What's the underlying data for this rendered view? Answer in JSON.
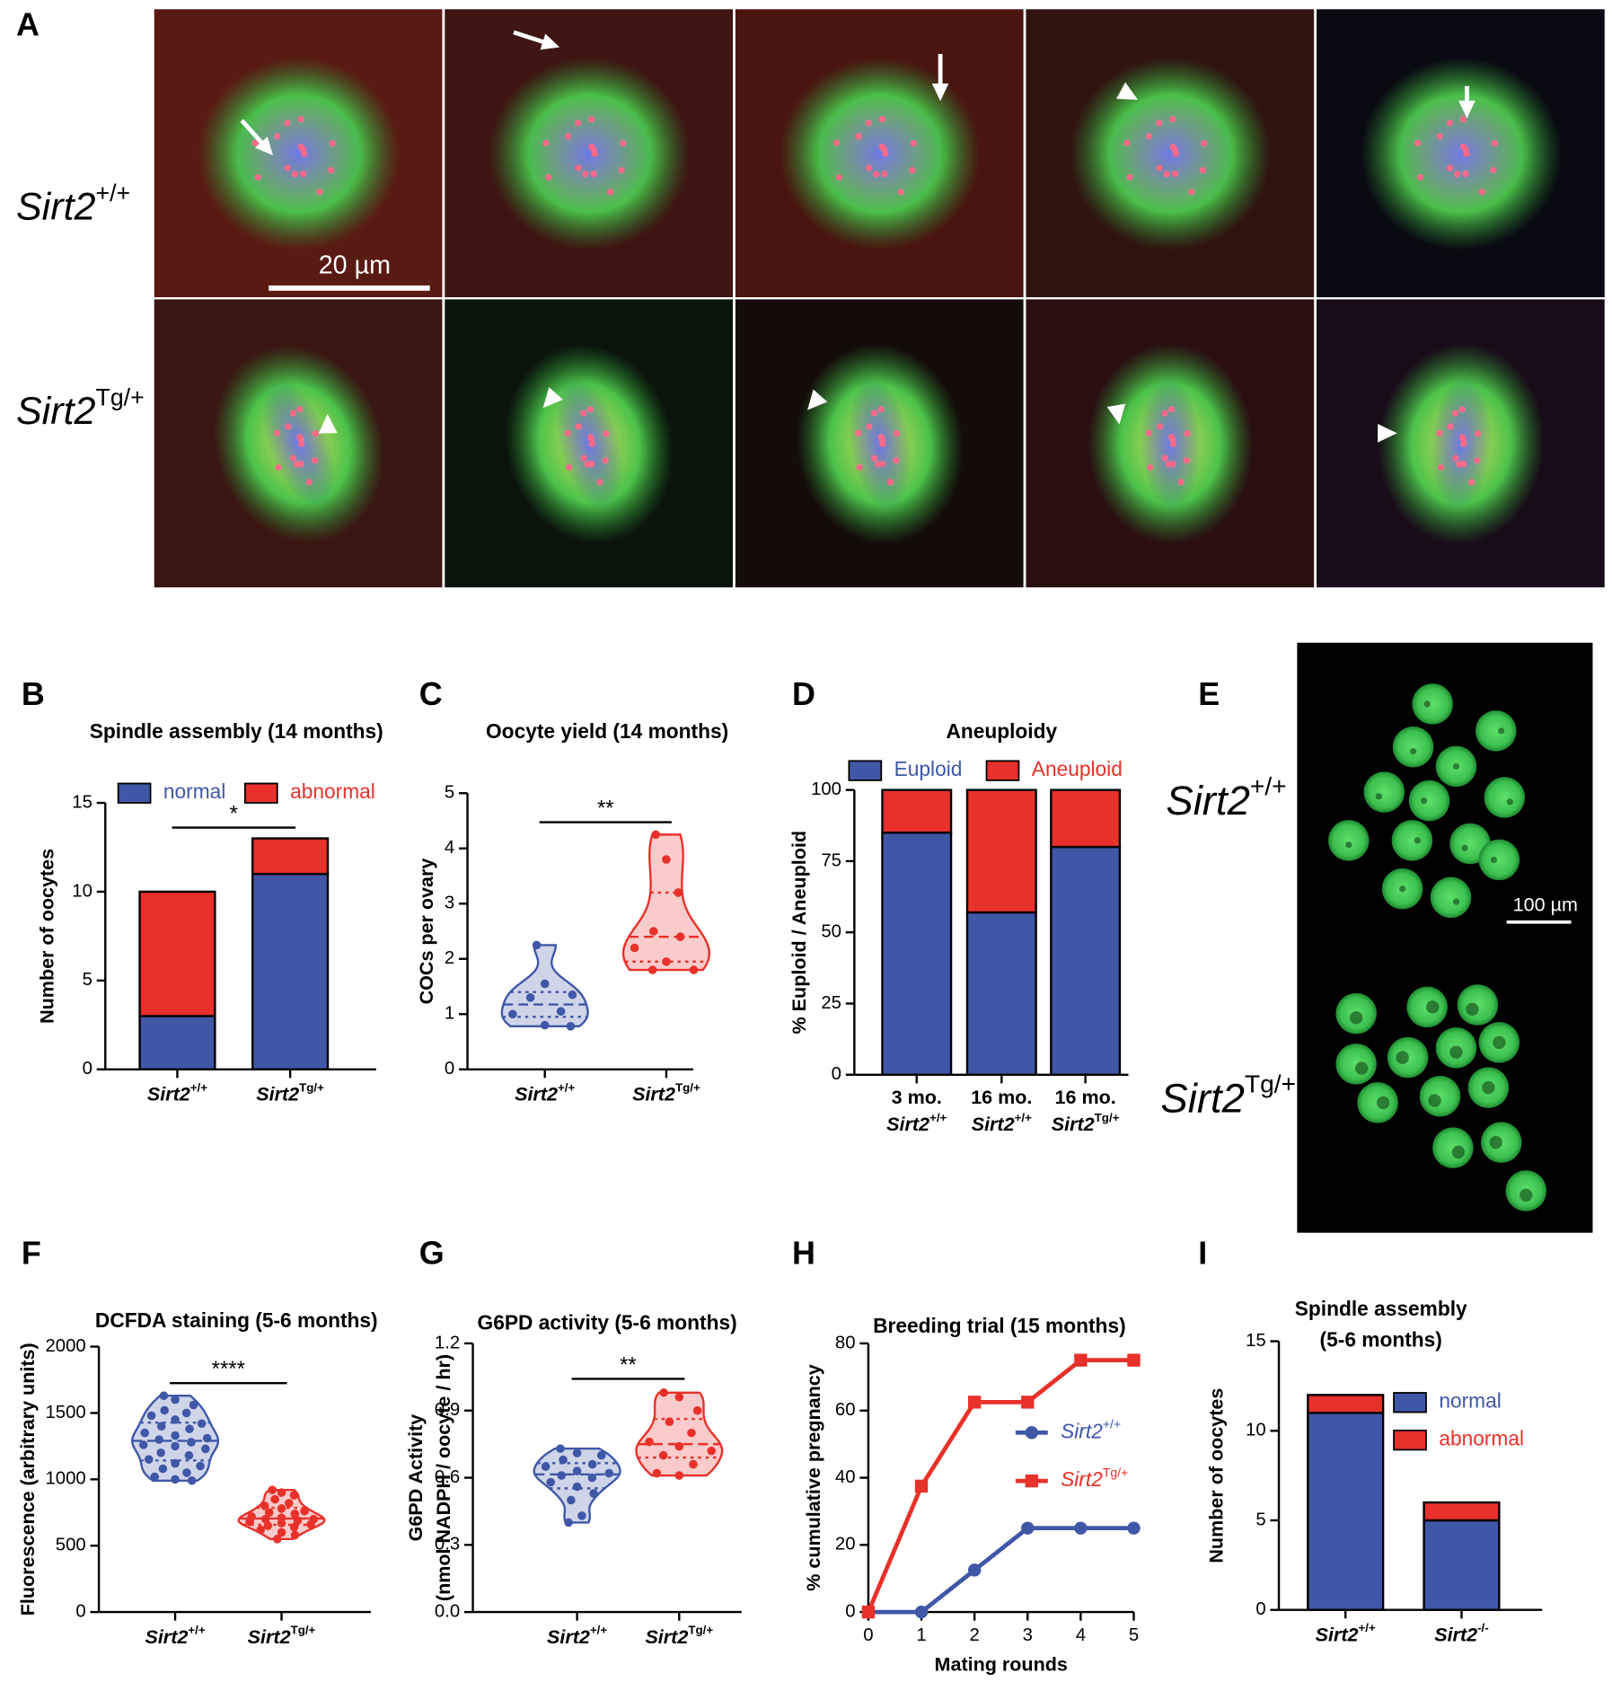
{
  "panel_labels": [
    "A",
    "B",
    "C",
    "D",
    "E",
    "F",
    "G",
    "H",
    "I"
  ],
  "panel_a": {
    "row_labels": [
      {
        "name": "Sirt2",
        "sup": "+/+"
      },
      {
        "name": "Sirt2",
        "sup": "Tg/+"
      }
    ],
    "scale_bar": "20 µm"
  },
  "panel_e": {
    "row_labels": [
      {
        "name": "Sirt2",
        "sup": "+/+"
      },
      {
        "name": "Sirt2",
        "sup": "Tg/+"
      }
    ],
    "scale_bar": "100 µm"
  },
  "chart_data": [
    {
      "type": "stacked_bar",
      "title": "Spindle assembly (14 months)",
      "ylabel": "Number of oocytes",
      "categories": [
        {
          "name": "Sirt2",
          "sup": "+/+"
        },
        {
          "name": "Sirt2",
          "sup": "Tg/+"
        }
      ],
      "series": [
        {
          "name": "normal",
          "color": "#3f57a6",
          "values": [
            3,
            11
          ]
        },
        {
          "name": "abnormal",
          "color": "#e8312a",
          "values": [
            7,
            2
          ]
        }
      ],
      "ylim": [
        0,
        15
      ],
      "yticks": [
        0,
        5,
        10,
        15
      ],
      "significance": "*"
    },
    {
      "type": "violin",
      "title": "Oocyte yield (14 months)",
      "ylabel": "COCs per ovary",
      "categories": [
        {
          "name": "Sirt2",
          "sup": "+/+"
        },
        {
          "name": "Sirt2",
          "sup": "Tg/+"
        }
      ],
      "series": [
        {
          "color": "#3f57a6",
          "values": [
            2.25,
            1.55,
            1.35,
            1.3,
            1.05,
            1.0,
            0.8,
            0.78
          ]
        },
        {
          "color": "#e8312a",
          "values": [
            4.25,
            3.8,
            3.2,
            2.5,
            2.4,
            2.2,
            1.95,
            1.8,
            1.8
          ]
        }
      ],
      "ylim": [
        0,
        5
      ],
      "yticks": [
        0,
        1,
        2,
        3,
        4,
        5
      ],
      "significance": "**"
    },
    {
      "type": "stacked_bar",
      "title": "Aneuploidy",
      "ylabel": "% Euploid / Aneuploid",
      "categories": [
        {
          "prefix": "3 mo.",
          "name": "Sirt2",
          "sup": "+/+"
        },
        {
          "prefix": "16 mo.",
          "name": "Sirt2",
          "sup": "+/+"
        },
        {
          "prefix": "16 mo.",
          "name": "Sirt2",
          "sup": "Tg/+"
        }
      ],
      "series": [
        {
          "name": "Euploid",
          "color": "#3f57a6",
          "values": [
            85,
            57,
            80
          ]
        },
        {
          "name": "Aneuploid",
          "color": "#e8312a",
          "values": [
            15,
            43,
            20
          ]
        }
      ],
      "ylim": [
        0,
        100
      ],
      "yticks": [
        0,
        25,
        50,
        75,
        100
      ]
    },
    {
      "type": "violin",
      "title": "DCFDA staining (5-6 months)",
      "ylabel": "Fluorescence (arbitrary units)",
      "categories": [
        {
          "name": "Sirt2",
          "sup": "+/+"
        },
        {
          "name": "Sirt2",
          "sup": "Tg/+"
        }
      ],
      "series": [
        {
          "color": "#3f57a6",
          "values": [
            1630,
            1600,
            1560,
            1520,
            1500,
            1480,
            1450,
            1420,
            1400,
            1380,
            1350,
            1330,
            1310,
            1300,
            1280,
            1260,
            1250,
            1230,
            1200,
            1180,
            1150,
            1120,
            1100,
            1080,
            1050,
            1020,
            1000,
            990
          ]
        },
        {
          "color": "#e8312a",
          "values": [
            920,
            900,
            880,
            850,
            820,
            800,
            780,
            760,
            750,
            740,
            720,
            710,
            700,
            700,
            690,
            680,
            670,
            660,
            650,
            640,
            620,
            600,
            580,
            550
          ]
        }
      ],
      "ylim": [
        0,
        2000
      ],
      "yticks": [
        0,
        500,
        1000,
        1500,
        2000
      ],
      "significance": "****"
    },
    {
      "type": "violin",
      "title": "G6PD activity (5-6 months)",
      "ylabel": [
        "G6PD Activity",
        "(nmol NADPH / oocyte / hr)"
      ],
      "categories": [
        {
          "name": "Sirt2",
          "sup": "+/+"
        },
        {
          "name": "Sirt2",
          "sup": "Tg/+"
        }
      ],
      "series": [
        {
          "color": "#3f57a6",
          "values": [
            0.73,
            0.71,
            0.7,
            0.68,
            0.66,
            0.65,
            0.63,
            0.62,
            0.61,
            0.6,
            0.58,
            0.56,
            0.53,
            0.5,
            0.43,
            0.4
          ]
        },
        {
          "color": "#e8312a",
          "values": [
            0.98,
            0.96,
            0.9,
            0.85,
            0.8,
            0.76,
            0.74,
            0.72,
            0.7,
            0.66,
            0.62,
            0.61
          ]
        }
      ],
      "ylim": [
        0,
        1.2
      ],
      "yticks": [
        {
          "value": 0,
          "label": "0.0"
        },
        0.3,
        0.6,
        0.9,
        1.2
      ],
      "significance": "**"
    },
    {
      "type": "line",
      "title": "Breeding trial (15 months)",
      "xlabel": "Mating rounds",
      "ylabel": "% cumulative pregnancy",
      "x": [
        0,
        1,
        2,
        3,
        4,
        5
      ],
      "series": [
        {
          "name": "Sirt2",
          "name_sup": "+/+",
          "color": "#3f57a6",
          "marker": "circle",
          "values": [
            0,
            0,
            12.5,
            25,
            25,
            25
          ]
        },
        {
          "name": "Sirt2",
          "name_sup": "Tg/+",
          "color": "#e8312a",
          "marker": "square",
          "values": [
            0,
            37.5,
            62.5,
            62.5,
            75,
            75
          ]
        }
      ],
      "xlim": [
        0,
        5
      ],
      "xticks": [
        0,
        1,
        2,
        3,
        4,
        5
      ],
      "ylim": [
        0,
        80
      ],
      "yticks": [
        0,
        20,
        40,
        60,
        80
      ]
    },
    {
      "type": "stacked_bar",
      "title": [
        "Spindle assembly",
        "(5-6 months)"
      ],
      "ylabel": "Number of oocytes",
      "categories": [
        {
          "name": "Sirt2",
          "sup": "+/+"
        },
        {
          "name": "Sirt2",
          "sup": "-/-"
        }
      ],
      "series": [
        {
          "name": "normal",
          "color": "#3f57a6",
          "values": [
            11,
            5
          ]
        },
        {
          "name": "abnormal",
          "color": "#e8312a",
          "values": [
            1,
            1
          ]
        }
      ],
      "ylim": [
        0,
        15
      ],
      "yticks": [
        0,
        5,
        10,
        15
      ]
    }
  ]
}
